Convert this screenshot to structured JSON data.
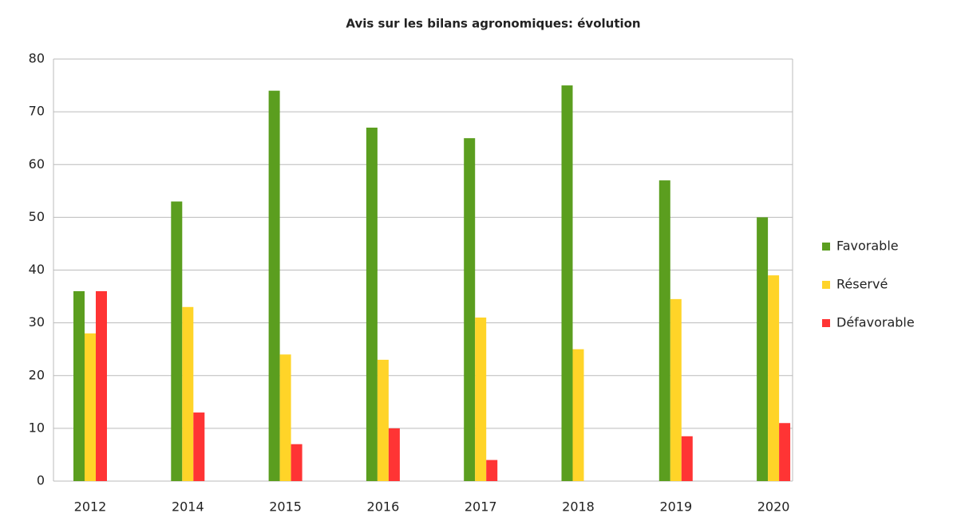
{
  "chart_data": {
    "type": "bar",
    "title": "Avis sur les bilans agronomiques: évolution",
    "categories": [
      "2012",
      "2014",
      "2015",
      "2016",
      "2017",
      "2018",
      "2019",
      "2020"
    ],
    "series": [
      {
        "name": "Favorable",
        "color": "#5b9e1f",
        "values": [
          36,
          53,
          74,
          67,
          65,
          75,
          57,
          50
        ]
      },
      {
        "name": "Réservé",
        "color": "#ffd428",
        "values": [
          28,
          33,
          24,
          23,
          31,
          25,
          34.5,
          39
        ]
      },
      {
        "name": "Défavorable",
        "color": "#ff3434",
        "values": [
          36,
          13,
          7,
          10,
          4,
          null,
          8.5,
          11
        ]
      }
    ],
    "ylim": [
      0,
      80
    ],
    "yticks": [
      0,
      10,
      20,
      30,
      40,
      50,
      60,
      70,
      80
    ],
    "grid": true,
    "legend": "right"
  }
}
